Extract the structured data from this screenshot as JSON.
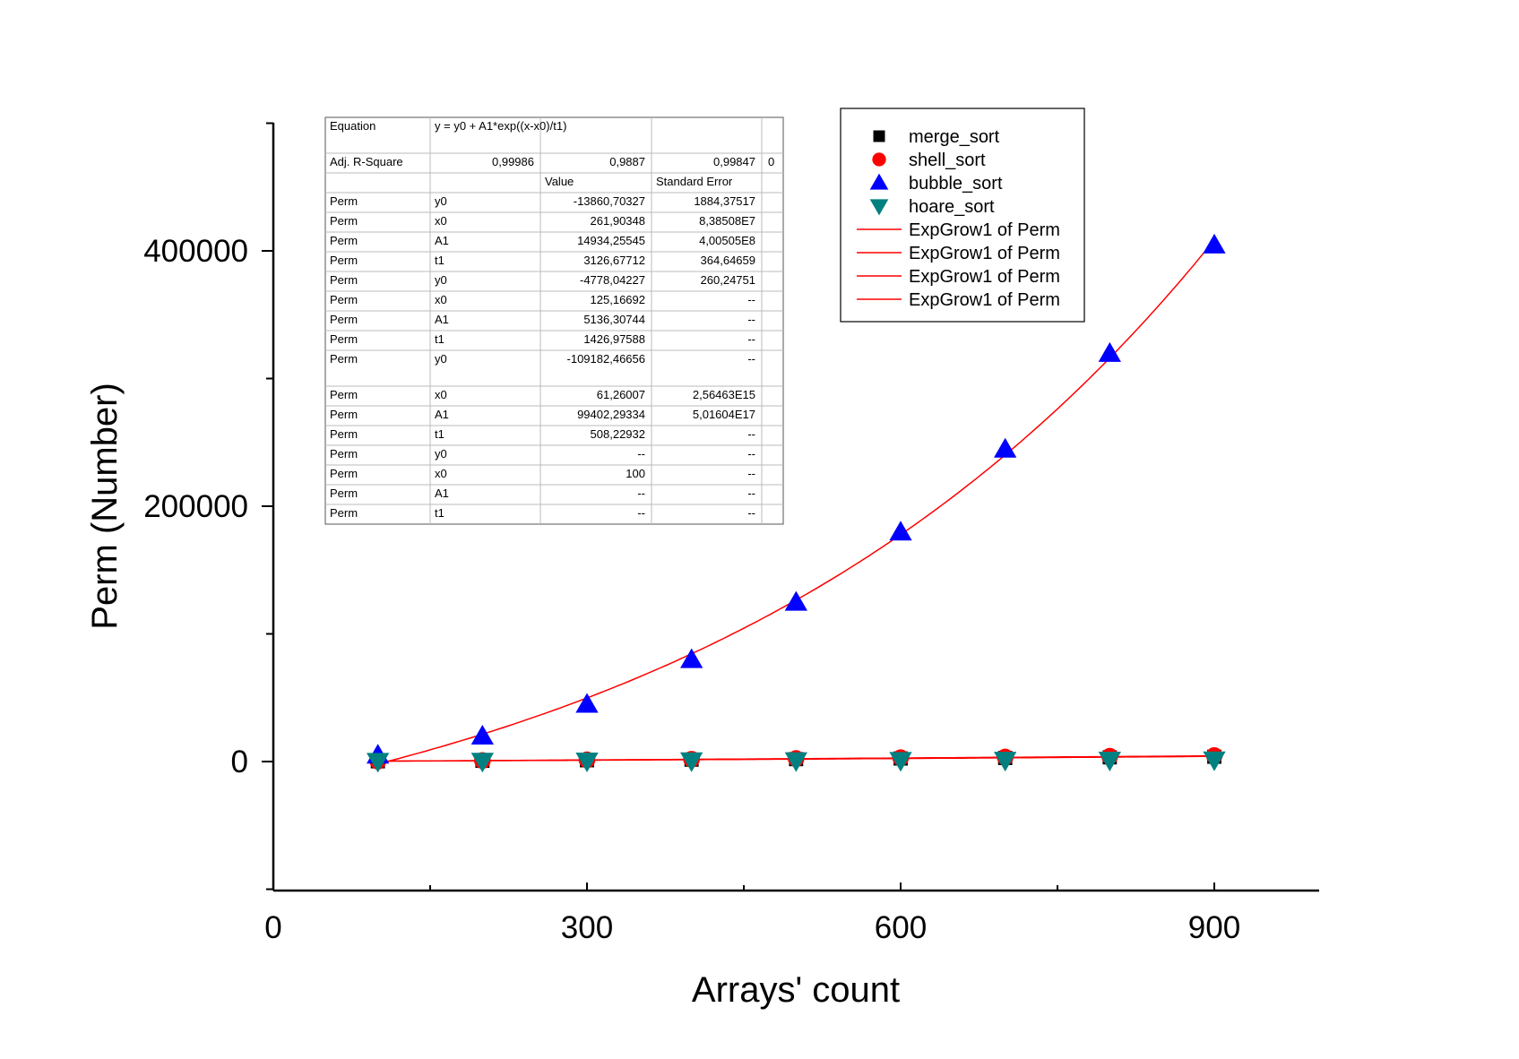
{
  "chart_data": {
    "type": "scatter",
    "xlabel": "Arrays' count",
    "ylabel": "Perm (Number)",
    "xlim": [
      0,
      1000
    ],
    "ylim": [
      -100000,
      500000
    ],
    "x_major_ticks": [
      0,
      300,
      600,
      900
    ],
    "x_minor_ticks": [
      150,
      450,
      750
    ],
    "y_major_ticks": [
      0,
      200000,
      400000
    ],
    "y_minor_ticks": [
      -100000,
      100000,
      300000,
      500000
    ],
    "x_tick_labels": [
      "0",
      "300",
      "600",
      "900"
    ],
    "y_tick_labels": [
      "0",
      "200000",
      "400000"
    ],
    "x": [
      100,
      200,
      300,
      400,
      500,
      600,
      700,
      800,
      900
    ],
    "series": [
      {
        "name": "merge_sort",
        "marker": "square",
        "color": "#000000",
        "values": [
          200,
          600,
          1000,
          1500,
          1900,
          2400,
          2800,
          3300,
          3800
        ]
      },
      {
        "name": "shell_sort",
        "marker": "circle",
        "color": "#ff0000",
        "values": [
          300,
          800,
          1300,
          1800,
          2400,
          3000,
          3500,
          4100,
          4700
        ]
      },
      {
        "name": "bubble_sort",
        "marker": "triangle-up",
        "color": "#0000ff",
        "values": [
          4950,
          19900,
          44850,
          79800,
          124750,
          179700,
          244650,
          319600,
          404550
        ]
      },
      {
        "name": "hoare_sort",
        "marker": "triangle-down",
        "color": "#008080",
        "values": [
          150,
          300,
          450,
          600,
          750,
          900,
          1050,
          1200,
          1350
        ]
      }
    ],
    "fit_curves": [
      {
        "name": "ExpGrow1 of Perm",
        "color": "#ff0000",
        "y0": -109182.46656,
        "x0": 61.26007,
        "A1": 99402.29334,
        "t1": 508.22932
      },
      {
        "name": "ExpGrow1 of Perm",
        "color": "#ff0000",
        "y0": -4778.04227,
        "x0": 125.16692,
        "A1": 5136.30744,
        "t1": 1426.97588
      },
      {
        "name": "ExpGrow1 of Perm",
        "color": "#ff0000",
        "y0": -13860.70327,
        "x0": 261.90348,
        "A1": 14934.25545,
        "t1": 3126.67712
      },
      {
        "name": "ExpGrow1 of Perm",
        "color": "#ff0000"
      }
    ],
    "legend": {
      "placement": "top-right",
      "entries": [
        "merge_sort",
        "shell_sort",
        "bubble_sort",
        "hoare_sort",
        "ExpGrow1 of Perm",
        "ExpGrow1 of Perm",
        "ExpGrow1 of Perm",
        "ExpGrow1 of Perm"
      ]
    },
    "fit_table": {
      "rows": [
        [
          "Equation",
          "y = y0 + A1*exp((x-x0)/t1)",
          "",
          "",
          ""
        ],
        [
          "Adj. R-Square",
          "",
          "0,99986",
          "0,9887",
          "0,99847",
          "0"
        ],
        [
          "",
          "",
          "Value",
          "Standard Error",
          ""
        ],
        [
          "Perm",
          "y0",
          "-13860,70327",
          "1884,37517",
          ""
        ],
        [
          "Perm",
          "x0",
          "261,90348",
          "8,38508E7",
          ""
        ],
        [
          "Perm",
          "A1",
          "14934,25545",
          "4,00505E8",
          ""
        ],
        [
          "Perm",
          "t1",
          "3126,67712",
          "364,64659",
          ""
        ],
        [
          "Perm",
          "y0",
          "-4778,04227",
          "260,24751",
          ""
        ],
        [
          "Perm",
          "x0",
          "125,16692",
          "--",
          ""
        ],
        [
          "Perm",
          "A1",
          "5136,30744",
          "--",
          ""
        ],
        [
          "Perm",
          "t1",
          "1426,97588",
          "--",
          ""
        ],
        [
          "Perm",
          "y0",
          "-109182,46656",
          "--",
          ""
        ],
        [
          "Perm",
          "x0",
          "61,26007",
          "2,56463E15",
          ""
        ],
        [
          "Perm",
          "A1",
          "99402,29334",
          "5,01604E17",
          ""
        ],
        [
          "Perm",
          "t1",
          "508,22932",
          "--",
          ""
        ],
        [
          "Perm",
          "y0",
          "--",
          "--",
          ""
        ],
        [
          "Perm",
          "x0",
          "100",
          "--",
          ""
        ],
        [
          "Perm",
          "A1",
          "--",
          "--",
          ""
        ],
        [
          "Perm",
          "t1",
          "--",
          "--",
          ""
        ]
      ]
    }
  }
}
